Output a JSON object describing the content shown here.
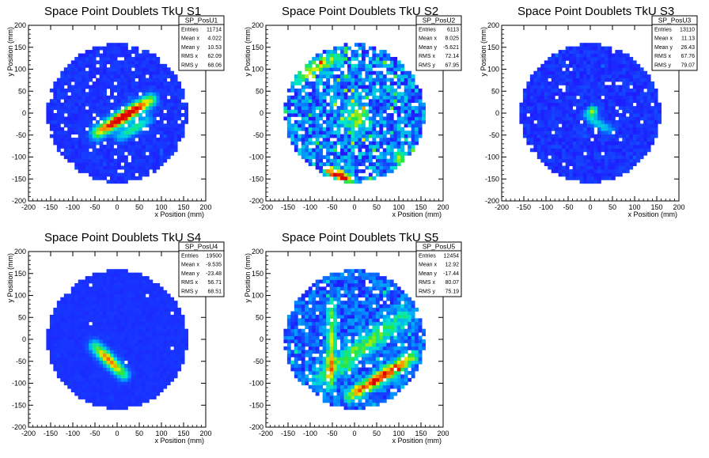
{
  "chart_data": [
    {
      "type": "heatmap",
      "title": "Space Point Doublets TkU S1",
      "xlabel": "x Position (mm)",
      "ylabel": "y Position (mm)",
      "xlim": [
        -200,
        200
      ],
      "ylim": [
        -200,
        200
      ],
      "xticks": [
        "-200",
        "-150",
        "-100",
        "-50",
        "0",
        "50",
        "100",
        "150",
        "200"
      ],
      "yticks": [
        "-200",
        "-150",
        "-100",
        "-50",
        "0",
        "50",
        "100",
        "150",
        "200"
      ],
      "stats": {
        "name": "SP_PosU1",
        "rows": [
          [
            "Entries",
            "11714"
          ],
          [
            "Mean x",
            "4.022"
          ],
          [
            "Mean y",
            "10.53"
          ],
          [
            "RMS x",
            "62.09"
          ],
          [
            "RMS y",
            "68.06"
          ]
        ]
      },
      "pattern": {
        "disk_radius": 158,
        "background": 0.15,
        "bands": [
          {
            "x1": -45,
            "y1": -45,
            "x2": 75,
            "y2": 30,
            "width": 10,
            "peak": 1.0
          },
          {
            "x1": 5,
            "y1": -55,
            "x2": 70,
            "y2": -15,
            "width": 8,
            "peak": 0.4
          }
        ],
        "blobs": [],
        "holes": 0.06,
        "noise": 0.05,
        "seed": 11
      }
    },
    {
      "type": "heatmap",
      "title": "Space Point Doublets TkU S2",
      "xlabel": "x Position (mm)",
      "ylabel": "y Position (mm)",
      "xlim": [
        -200,
        200
      ],
      "ylim": [
        -200,
        200
      ],
      "xticks": [
        "-200",
        "-150",
        "-100",
        "-50",
        "0",
        "50",
        "100",
        "150",
        "200"
      ],
      "yticks": [
        "-200",
        "-150",
        "-100",
        "-50",
        "0",
        "50",
        "100",
        "150",
        "200"
      ],
      "stats": {
        "name": "SP_PosU2",
        "rows": [
          [
            "Entries",
            "6113"
          ],
          [
            "Mean x",
            "8.025"
          ],
          [
            "Mean y",
            "-5.621"
          ],
          [
            "RMS x",
            "72.14"
          ],
          [
            "RMS y",
            "67.95"
          ]
        ]
      },
      "pattern": {
        "disk_radius": 158,
        "background": 0.25,
        "bands": [
          {
            "x1": -60,
            "y1": -130,
            "x2": -10,
            "y2": -150,
            "width": 8,
            "peak": 0.85
          },
          {
            "x1": -130,
            "y1": 80,
            "x2": -40,
            "y2": 130,
            "width": 10,
            "peak": 0.45
          }
        ],
        "blobs": [
          {
            "x": 5,
            "y": -10,
            "r": 35,
            "peak": 0.5
          },
          {
            "x": 100,
            "y": -100,
            "r": 20,
            "peak": 0.45
          }
        ],
        "holes": 0.14,
        "noise": 0.35,
        "seed": 22
      }
    },
    {
      "type": "heatmap",
      "title": "Space Point Doublets TkU S3",
      "xlabel": "x Position (mm)",
      "ylabel": "y Position (mm)",
      "xlim": [
        -200,
        200
      ],
      "ylim": [
        -200,
        200
      ],
      "xticks": [
        "-200",
        "-150",
        "-100",
        "-50",
        "0",
        "50",
        "100",
        "150",
        "200"
      ],
      "yticks": [
        "-200",
        "-150",
        "-100",
        "-50",
        "0",
        "50",
        "100",
        "150",
        "200"
      ],
      "stats": {
        "name": "SP_PosU3",
        "rows": [
          [
            "Entries",
            "13110"
          ],
          [
            "Mean x",
            "11.13"
          ],
          [
            "Mean y",
            "26.43"
          ],
          [
            "RMS x",
            "67.76"
          ],
          [
            "RMS y",
            "79.07"
          ]
        ]
      },
      "pattern": {
        "disk_radius": 158,
        "background": 0.15,
        "bands": [
          {
            "x1": -10,
            "y1": -5,
            "x2": 45,
            "y2": -40,
            "width": 7,
            "peak": 0.3
          }
        ],
        "blobs": [
          {
            "x": 5,
            "y": 5,
            "r": 12,
            "peak": 0.75
          }
        ],
        "holes": 0.04,
        "noise": 0.07,
        "seed": 33
      }
    },
    {
      "type": "heatmap",
      "title": "Space Point Doublets TkU S4",
      "xlabel": "x Position (mm)",
      "ylabel": "y Position (mm)",
      "xlim": [
        -200,
        200
      ],
      "ylim": [
        -200,
        200
      ],
      "xticks": [
        "-200",
        "-150",
        "-100",
        "-50",
        "0",
        "50",
        "100",
        "150",
        "200"
      ],
      "yticks": [
        "-200",
        "-150",
        "-100",
        "-50",
        "0",
        "50",
        "100",
        "150",
        "200"
      ],
      "stats": {
        "name": "SP_PosU4",
        "rows": [
          [
            "Entries",
            "19500"
          ],
          [
            "Mean x",
            "-9.535"
          ],
          [
            "Mean y",
            "-23.48"
          ],
          [
            "RMS x",
            "56.71"
          ],
          [
            "RMS y",
            "68.51"
          ]
        ]
      },
      "pattern": {
        "disk_radius": 158,
        "background": 0.15,
        "bands": [
          {
            "x1": -50,
            "y1": -15,
            "x2": 15,
            "y2": -80,
            "width": 9,
            "peak": 0.75
          }
        ],
        "blobs": [],
        "holes": 0.005,
        "noise": 0.02,
        "seed": 44
      }
    },
    {
      "type": "heatmap",
      "title": "Space Point Doublets TkU S5",
      "xlabel": "x Position (mm)",
      "ylabel": "y Position (mm)",
      "xlim": [
        -200,
        200
      ],
      "ylim": [
        -200,
        200
      ],
      "xticks": [
        "-200",
        "-150",
        "-100",
        "-50",
        "0",
        "50",
        "100",
        "150",
        "200"
      ],
      "yticks": [
        "-200",
        "-150",
        "-100",
        "-50",
        "0",
        "50",
        "100",
        "150",
        "200"
      ],
      "stats": {
        "name": "SP_PosU5",
        "rows": [
          [
            "Entries",
            "12454"
          ],
          [
            "Mean x",
            "12.92"
          ],
          [
            "Mean y",
            "-17.44"
          ],
          [
            "RMS x",
            "80.07"
          ],
          [
            "RMS y",
            "75.19"
          ]
        ]
      },
      "pattern": {
        "disk_radius": 158,
        "background": 0.22,
        "bands": [
          {
            "x1": -10,
            "y1": -130,
            "x2": 130,
            "y2": -40,
            "width": 10,
            "peak": 0.8
          },
          {
            "x1": -80,
            "y1": -90,
            "x2": 110,
            "y2": 50,
            "width": 14,
            "peak": 0.4
          },
          {
            "x1": -55,
            "y1": -110,
            "x2": -50,
            "y2": 90,
            "width": 7,
            "peak": 0.45
          }
        ],
        "blobs": [],
        "holes": 0.08,
        "noise": 0.22,
        "seed": 55
      }
    }
  ]
}
